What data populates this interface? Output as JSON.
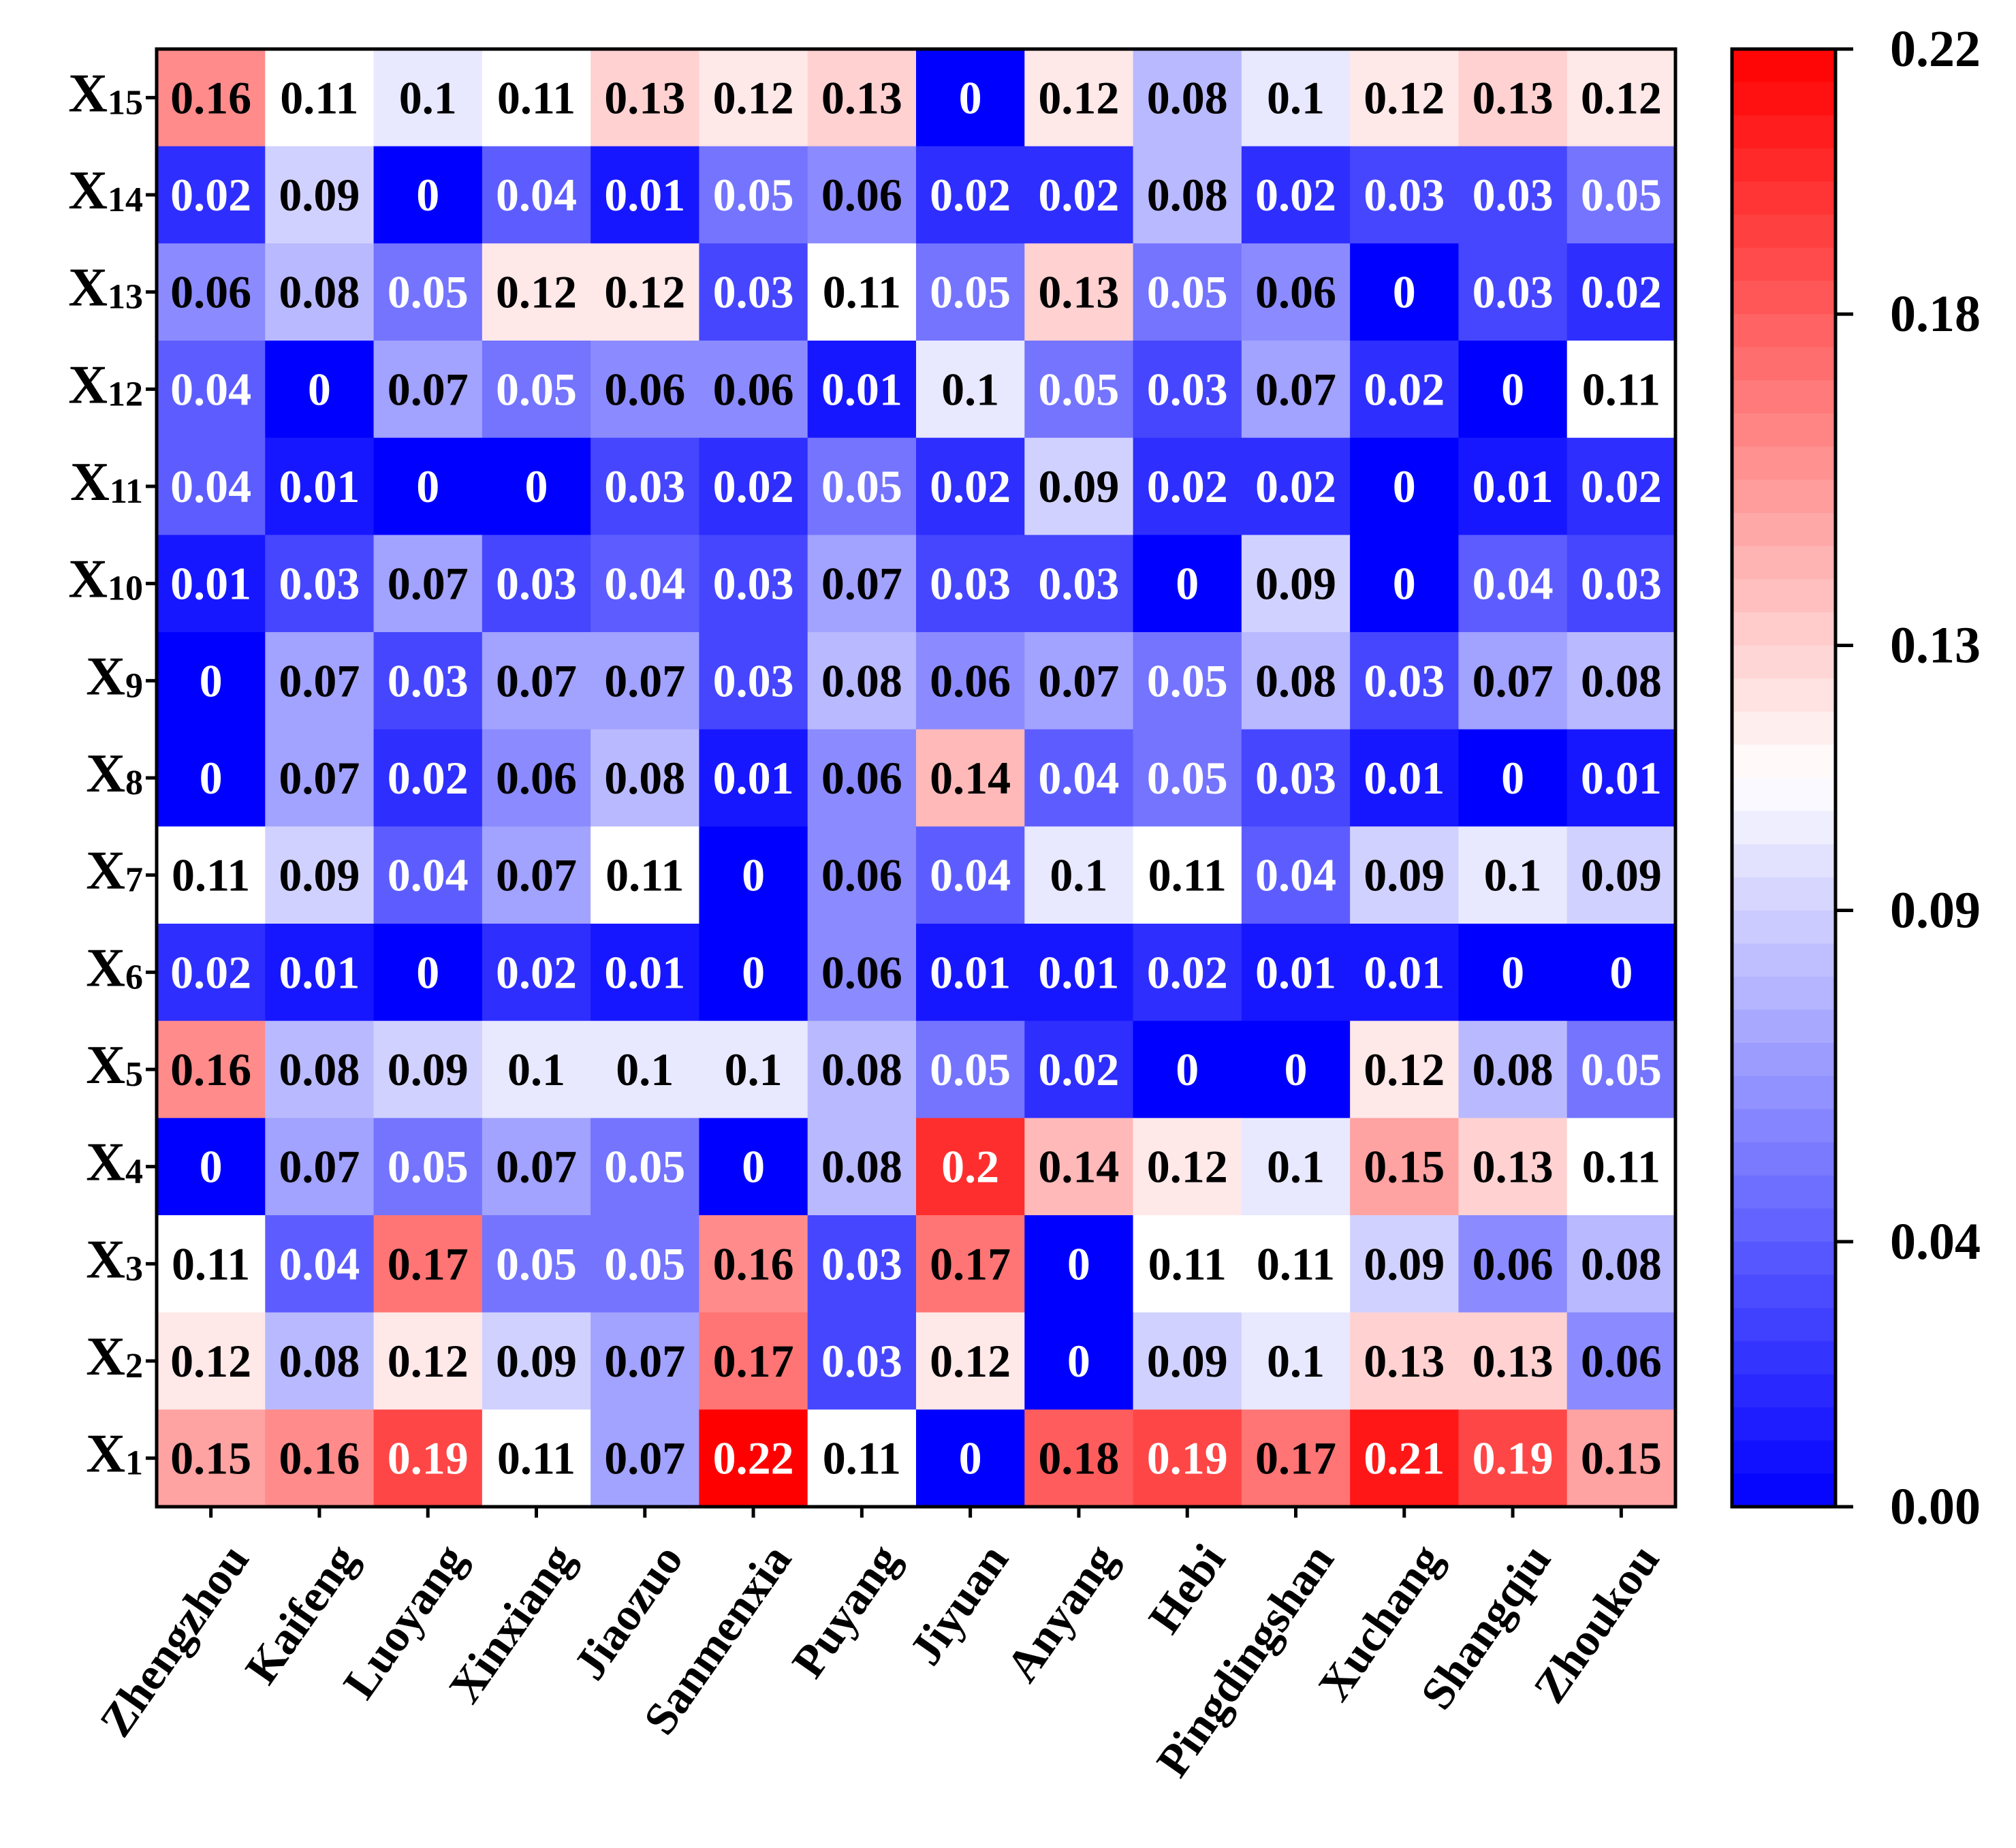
{
  "chart_data": {
    "type": "heatmap",
    "title": "",
    "xlabel": "",
    "ylabel": "",
    "x_categories": [
      "Zhengzhou",
      "Kaifeng",
      "Luoyang",
      "Xinxiang",
      "Jiaozuo",
      "Sanmenxia",
      "Puyang",
      "Jiyuan",
      "Anyang",
      "Hebi",
      "Pingdingshan",
      "Xuchang",
      "Shangqiu",
      "Zhoukou"
    ],
    "y_categories": [
      {
        "base": "X",
        "sub": "15"
      },
      {
        "base": "X",
        "sub": "14"
      },
      {
        "base": "X",
        "sub": "13"
      },
      {
        "base": "X",
        "sub": "12"
      },
      {
        "base": "X",
        "sub": "11"
      },
      {
        "base": "X",
        "sub": "10"
      },
      {
        "base": "X",
        "sub": "9"
      },
      {
        "base": "X",
        "sub": "8"
      },
      {
        "base": "X",
        "sub": "7"
      },
      {
        "base": "X",
        "sub": "6"
      },
      {
        "base": "X",
        "sub": "5"
      },
      {
        "base": "X",
        "sub": "4"
      },
      {
        "base": "X",
        "sub": "3"
      },
      {
        "base": "X",
        "sub": "2"
      },
      {
        "base": "X",
        "sub": "1"
      }
    ],
    "values": [
      [
        0.16,
        0.11,
        0.1,
        0.11,
        0.13,
        0.12,
        0.13,
        0,
        0.12,
        0.08,
        0.1,
        0.12,
        0.13,
        0.12
      ],
      [
        0.02,
        0.09,
        0,
        0.04,
        0.01,
        0.05,
        0.06,
        0.02,
        0.02,
        0.08,
        0.02,
        0.03,
        0.03,
        0.05
      ],
      [
        0.06,
        0.08,
        0.05,
        0.12,
        0.12,
        0.03,
        0.11,
        0.05,
        0.13,
        0.05,
        0.06,
        0,
        0.03,
        0.02
      ],
      [
        0.04,
        0,
        0.07,
        0.05,
        0.06,
        0.06,
        0.01,
        0.1,
        0.05,
        0.03,
        0.07,
        0.02,
        0,
        0.11
      ],
      [
        0.04,
        0.01,
        0,
        0,
        0.03,
        0.02,
        0.05,
        0.02,
        0.09,
        0.02,
        0.02,
        0,
        0.01,
        0.02
      ],
      [
        0.01,
        0.03,
        0.07,
        0.03,
        0.04,
        0.03,
        0.07,
        0.03,
        0.03,
        0,
        0.09,
        0,
        0.04,
        0.03
      ],
      [
        0,
        0.07,
        0.03,
        0.07,
        0.07,
        0.03,
        0.08,
        0.06,
        0.07,
        0.05,
        0.08,
        0.03,
        0.07,
        0.08
      ],
      [
        0,
        0.07,
        0.02,
        0.06,
        0.08,
        0.01,
        0.06,
        0.14,
        0.04,
        0.05,
        0.03,
        0.01,
        0,
        0.01
      ],
      [
        0.11,
        0.09,
        0.04,
        0.07,
        0.11,
        0,
        0.06,
        0.04,
        0.1,
        0.11,
        0.04,
        0.09,
        0.1,
        0.09
      ],
      [
        0.02,
        0.01,
        0,
        0.02,
        0.01,
        0,
        0.06,
        0.01,
        0.01,
        0.02,
        0.01,
        0.01,
        0,
        0
      ],
      [
        0.16,
        0.08,
        0.09,
        0.1,
        0.1,
        0.1,
        0.08,
        0.05,
        0.02,
        0,
        0,
        0.12,
        0.08,
        0.05
      ],
      [
        0,
        0.07,
        0.05,
        0.07,
        0.05,
        0,
        0.08,
        0.2,
        0.14,
        0.12,
        0.1,
        0.15,
        0.13,
        0.11
      ],
      [
        0.11,
        0.04,
        0.17,
        0.05,
        0.05,
        0.16,
        0.03,
        0.17,
        0,
        0.11,
        0.11,
        0.09,
        0.06,
        0.08
      ],
      [
        0.12,
        0.08,
        0.12,
        0.09,
        0.07,
        0.17,
        0.03,
        0.12,
        0,
        0.09,
        0.1,
        0.13,
        0.13,
        0.06
      ],
      [
        0.15,
        0.16,
        0.19,
        0.11,
        0.07,
        0.22,
        0.11,
        0,
        0.18,
        0.19,
        0.17,
        0.21,
        0.19,
        0.15
      ]
    ],
    "colorbar": {
      "range": [
        0,
        0.22
      ],
      "ticks": [
        0.0,
        0.04,
        0.09,
        0.13,
        0.18,
        0.22
      ],
      "tick_labels": [
        "0.00",
        "0.04",
        "0.09",
        "0.13",
        "0.18",
        "0.22"
      ],
      "low_color": "#0000ff",
      "mid_color": "#ffffff",
      "high_color": "#ff0000",
      "mid_value": 0.11
    },
    "grid": false
  }
}
